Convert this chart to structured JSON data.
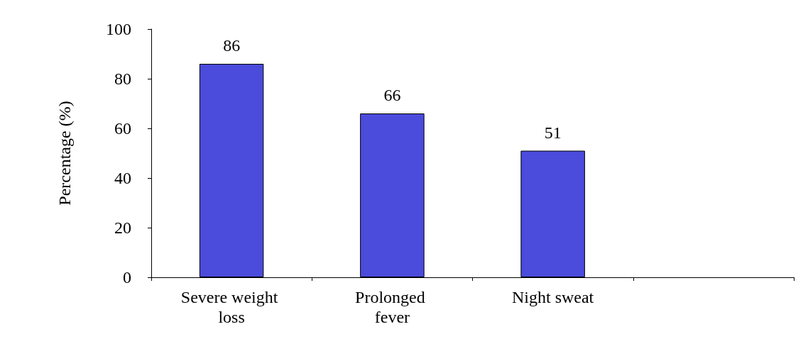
{
  "chart_data": {
    "type": "bar",
    "ylabel": "Percentage (%)",
    "categories": [
      "Severe weight loss",
      "Prolonged fever",
      "Night sweat",
      null
    ],
    "values": [
      86,
      66,
      51,
      null
    ],
    "color": "#4b4bdc",
    "ylim": [
      0,
      100
    ],
    "yticks": [
      0,
      20,
      40,
      60,
      80,
      100
    ],
    "data_labels": true,
    "grid": false
  }
}
